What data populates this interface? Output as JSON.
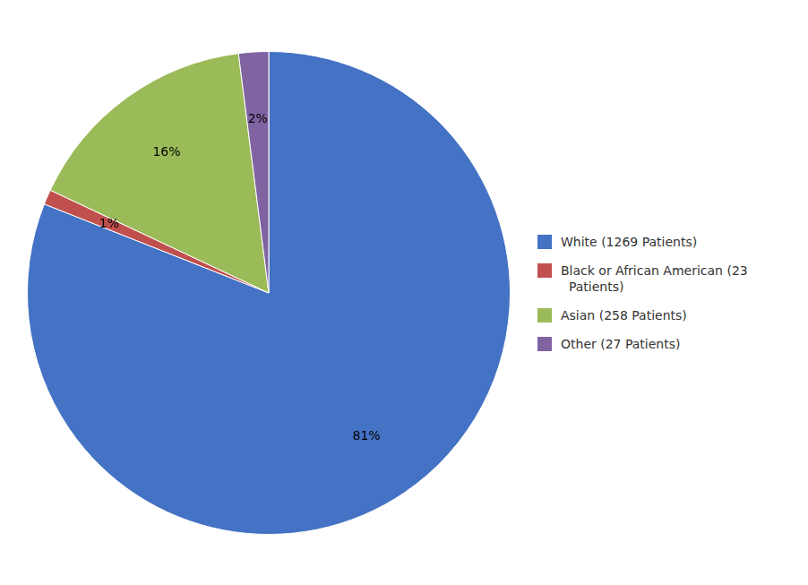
{
  "chart_data": {
    "type": "pie",
    "categories": [
      "White (1269 Patients)",
      "Black or African American (23\n  Patients)",
      "Asian (258 Patients)",
      "Other (27 Patients)"
    ],
    "values": [
      81,
      1,
      16,
      2
    ],
    "value_labels": [
      "81%",
      "1%",
      "16%",
      "2%"
    ],
    "colors": [
      "#4472C4",
      "#C0504D",
      "#9BBB59",
      "#8064A2"
    ],
    "data_labels": true,
    "legend": "right"
  }
}
